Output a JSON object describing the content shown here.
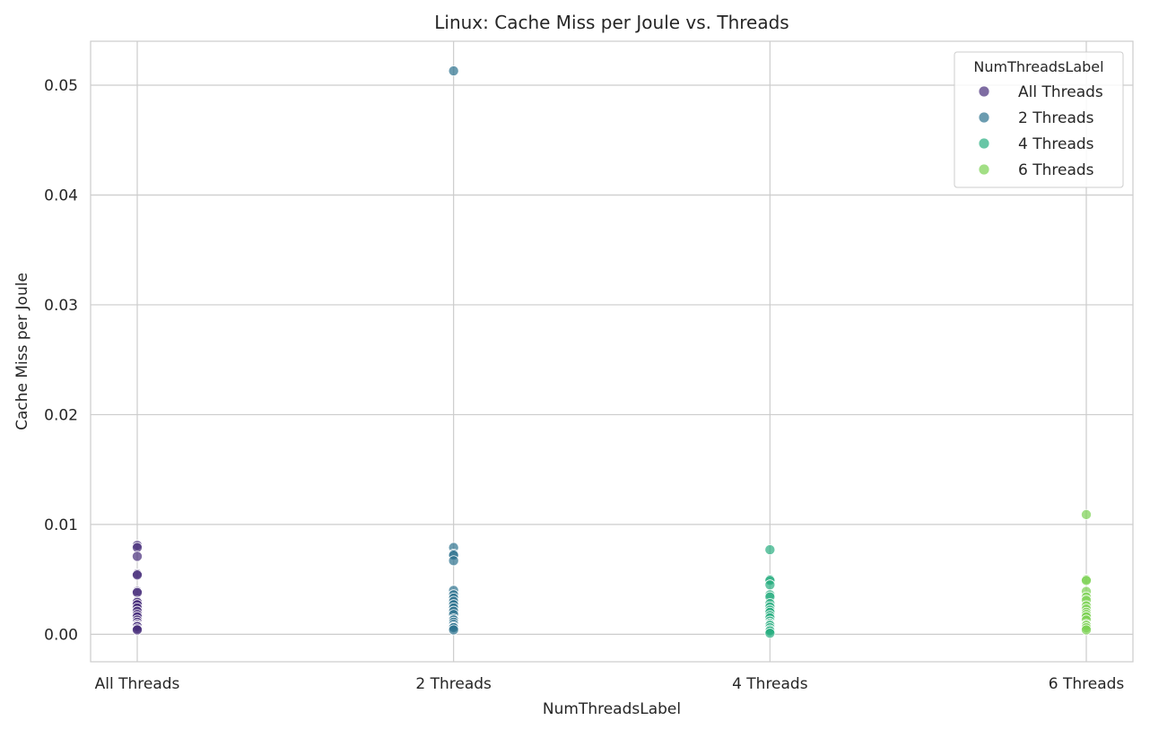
{
  "chart_data": {
    "type": "scatter",
    "title": "Linux: Cache Miss per Joule vs. Threads",
    "xlabel": "NumThreadsLabel",
    "ylabel": "Cache Miss per Joule",
    "categories": [
      "All Threads",
      "2 Threads",
      "4 Threads",
      "6 Threads"
    ],
    "ylim": [
      -0.0025,
      0.054
    ],
    "yticks": [
      0.0,
      0.01,
      0.02,
      0.03,
      0.04,
      0.05
    ],
    "ytick_labels": [
      "0.00",
      "0.01",
      "0.02",
      "0.03",
      "0.04",
      "0.05"
    ],
    "grid": true,
    "legend": {
      "title": "NumThreadsLabel",
      "placement": "top-right",
      "entries": [
        "All Threads",
        "2 Threads",
        "4 Threads",
        "6 Threads"
      ]
    },
    "series": [
      {
        "name": "All Threads",
        "color": "#472d7b",
        "x": "All Threads",
        "values": [
          0.0081,
          0.0079,
          0.0071,
          0.0055,
          0.0054,
          0.0039,
          0.0038,
          0.003,
          0.0029,
          0.0027,
          0.0024,
          0.0021,
          0.0018,
          0.0016,
          0.0013,
          0.0011,
          0.0009,
          0.0008,
          0.0007,
          0.0005,
          0.0004
        ]
      },
      {
        "name": "2 Threads",
        "color": "#2c728e",
        "x": "2 Threads",
        "values": [
          0.0513,
          0.0079,
          0.0073,
          0.0072,
          0.0067,
          0.004,
          0.0036,
          0.0033,
          0.003,
          0.0027,
          0.0024,
          0.0021,
          0.0018,
          0.0014,
          0.0013,
          0.0011,
          0.0009,
          0.0007,
          0.0006,
          0.0004
        ]
      },
      {
        "name": "4 Threads",
        "color": "#28ae80",
        "x": "4 Threads",
        "values": [
          0.0077,
          0.005,
          0.0049,
          0.0045,
          0.0036,
          0.0034,
          0.0028,
          0.0025,
          0.0022,
          0.002,
          0.0017,
          0.0015,
          0.0012,
          0.001,
          0.0009,
          0.0008,
          0.0006,
          0.0004,
          0.0003,
          0.0001
        ]
      },
      {
        "name": "6 Threads",
        "color": "#7ad151",
        "x": "6 Threads",
        "values": [
          0.0109,
          0.005,
          0.0049,
          0.0039,
          0.0034,
          0.0031,
          0.0026,
          0.0023,
          0.002,
          0.0018,
          0.0016,
          0.0013,
          0.0009,
          0.0008,
          0.0006,
          0.0004
        ]
      }
    ]
  }
}
